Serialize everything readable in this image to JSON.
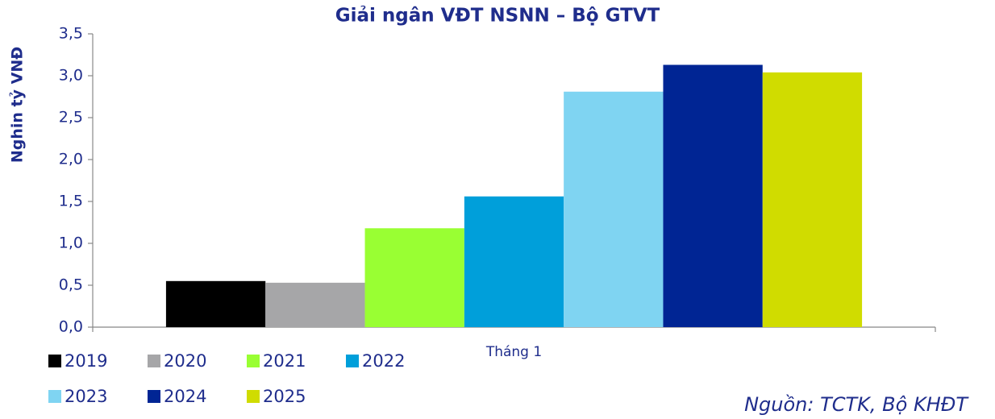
{
  "chart_data": {
    "type": "bar",
    "title": "Giải ngân VĐT NSNN – Bộ GTVT",
    "y_label": "Nghin tỷ VNĐ",
    "source": "Nguồn: TCTK, Bộ KHĐT",
    "categories": [
      "Tháng 1"
    ],
    "series": [
      {
        "name": "2019",
        "color": "#000000",
        "values": [
          0.55
        ]
      },
      {
        "name": "2020",
        "color": "#a6a6a8",
        "values": [
          0.53
        ]
      },
      {
        "name": "2021",
        "color": "#99ff33",
        "values": [
          1.18
        ]
      },
      {
        "name": "2022",
        "color": "#009fda",
        "values": [
          1.56
        ]
      },
      {
        "name": "2023",
        "color": "#7fd4f2",
        "values": [
          2.81
        ]
      },
      {
        "name": "2024",
        "color": "#002594",
        "values": [
          3.13
        ]
      },
      {
        "name": "2025",
        "color": "#d0dc00",
        "values": [
          3.04
        ]
      }
    ],
    "ylim": [
      0,
      3.5
    ],
    "yticks": [
      {
        "value": 0,
        "label": "0,0"
      },
      {
        "value": 0.5,
        "label": "0,5"
      },
      {
        "value": 1,
        "label": "1,0"
      },
      {
        "value": 1.5,
        "label": "1,5"
      },
      {
        "value": 2,
        "label": "2,0"
      },
      {
        "value": 2.5,
        "label": "2,5"
      },
      {
        "value": 3,
        "label": "3,0"
      },
      {
        "value": 3.5,
        "label": "3,5"
      }
    ],
    "legend": "bottom-left"
  }
}
